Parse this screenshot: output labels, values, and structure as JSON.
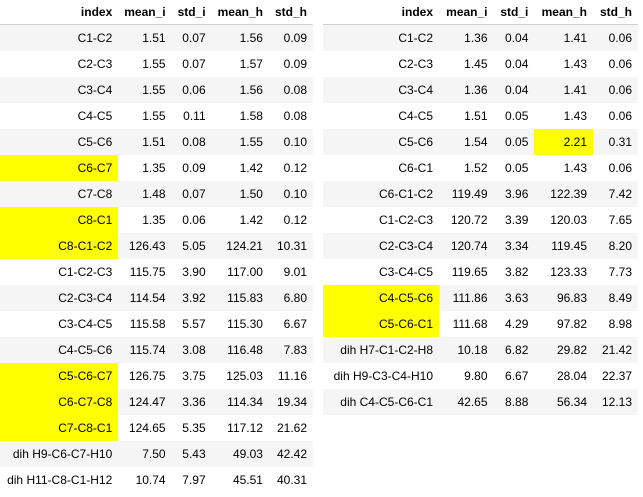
{
  "highlight_color": "#ffff00",
  "left_table": {
    "columns": [
      "index",
      "mean_i",
      "std_i",
      "mean_h",
      "std_h"
    ],
    "rows": [
      {
        "cells": [
          "C1-C2",
          "1.51",
          "0.07",
          "1.56",
          "0.09"
        ],
        "highlight": []
      },
      {
        "cells": [
          "C2-C3",
          "1.55",
          "0.07",
          "1.57",
          "0.09"
        ],
        "highlight": []
      },
      {
        "cells": [
          "C3-C4",
          "1.55",
          "0.06",
          "1.56",
          "0.08"
        ],
        "highlight": []
      },
      {
        "cells": [
          "C4-C5",
          "1.55",
          "0.11",
          "1.58",
          "0.08"
        ],
        "highlight": []
      },
      {
        "cells": [
          "C5-C6",
          "1.51",
          "0.08",
          "1.55",
          "0.10"
        ],
        "highlight": []
      },
      {
        "cells": [
          "C6-C7",
          "1.35",
          "0.09",
          "1.42",
          "0.12"
        ],
        "highlight": [
          0
        ]
      },
      {
        "cells": [
          "C7-C8",
          "1.48",
          "0.07",
          "1.50",
          "0.10"
        ],
        "highlight": []
      },
      {
        "cells": [
          "C8-C1",
          "1.35",
          "0.06",
          "1.42",
          "0.12"
        ],
        "highlight": [
          0
        ]
      },
      {
        "cells": [
          "C8-C1-C2",
          "126.43",
          "5.05",
          "124.21",
          "10.31"
        ],
        "highlight": [
          0
        ]
      },
      {
        "cells": [
          "C1-C2-C3",
          "115.75",
          "3.90",
          "117.00",
          "9.01"
        ],
        "highlight": []
      },
      {
        "cells": [
          "C2-C3-C4",
          "114.54",
          "3.92",
          "115.83",
          "6.80"
        ],
        "highlight": []
      },
      {
        "cells": [
          "C3-C4-C5",
          "115.58",
          "5.57",
          "115.30",
          "6.67"
        ],
        "highlight": []
      },
      {
        "cells": [
          "C4-C5-C6",
          "115.74",
          "3.08",
          "116.48",
          "7.83"
        ],
        "highlight": []
      },
      {
        "cells": [
          "C5-C6-C7",
          "126.75",
          "3.75",
          "125.03",
          "11.16"
        ],
        "highlight": [
          0
        ]
      },
      {
        "cells": [
          "C6-C7-C8",
          "124.47",
          "3.36",
          "114.34",
          "19.34"
        ],
        "highlight": [
          0
        ]
      },
      {
        "cells": [
          "C7-C8-C1",
          "124.65",
          "5.35",
          "117.12",
          "21.62"
        ],
        "highlight": [
          0
        ]
      },
      {
        "cells": [
          "dih H9-C6-C7-H10",
          "7.50",
          "5.43",
          "49.03",
          "42.42"
        ],
        "highlight": []
      },
      {
        "cells": [
          "dih H11-C8-C1-H12",
          "10.74",
          "7.97",
          "45.51",
          "40.31"
        ],
        "highlight": []
      }
    ]
  },
  "right_table": {
    "columns": [
      "index",
      "mean_i",
      "std_i",
      "mean_h",
      "std_h"
    ],
    "rows": [
      {
        "cells": [
          "C1-C2",
          "1.36",
          "0.04",
          "1.41",
          "0.06"
        ],
        "highlight": []
      },
      {
        "cells": [
          "C2-C3",
          "1.45",
          "0.04",
          "1.43",
          "0.06"
        ],
        "highlight": []
      },
      {
        "cells": [
          "C3-C4",
          "1.36",
          "0.04",
          "1.41",
          "0.06"
        ],
        "highlight": []
      },
      {
        "cells": [
          "C4-C5",
          "1.51",
          "0.05",
          "1.43",
          "0.06"
        ],
        "highlight": []
      },
      {
        "cells": [
          "C5-C6",
          "1.54",
          "0.05",
          "2.21",
          "0.31"
        ],
        "highlight": [
          3
        ]
      },
      {
        "cells": [
          "C6-C1",
          "1.52",
          "0.05",
          "1.43",
          "0.06"
        ],
        "highlight": []
      },
      {
        "cells": [
          "C6-C1-C2",
          "119.49",
          "3.96",
          "122.39",
          "7.42"
        ],
        "highlight": []
      },
      {
        "cells": [
          "C1-C2-C3",
          "120.72",
          "3.39",
          "120.03",
          "7.65"
        ],
        "highlight": []
      },
      {
        "cells": [
          "C2-C3-C4",
          "120.74",
          "3.34",
          "119.45",
          "8.20"
        ],
        "highlight": []
      },
      {
        "cells": [
          "C3-C4-C5",
          "119.65",
          "3.82",
          "123.33",
          "7.73"
        ],
        "highlight": []
      },
      {
        "cells": [
          "C4-C5-C6",
          "111.86",
          "3.63",
          "96.83",
          "8.49"
        ],
        "highlight": [
          0
        ]
      },
      {
        "cells": [
          "C5-C6-C1",
          "111.68",
          "4.29",
          "97.82",
          "8.98"
        ],
        "highlight": [
          0
        ]
      },
      {
        "cells": [
          "dih H7-C1-C2-H8",
          "10.18",
          "6.82",
          "29.82",
          "21.42"
        ],
        "highlight": []
      },
      {
        "cells": [
          "dih H9-C3-C4-H10",
          "9.80",
          "6.67",
          "28.04",
          "22.37"
        ],
        "highlight": []
      },
      {
        "cells": [
          "dih C4-C5-C6-C1",
          "42.65",
          "8.88",
          "56.34",
          "12.13"
        ],
        "highlight": []
      }
    ]
  }
}
